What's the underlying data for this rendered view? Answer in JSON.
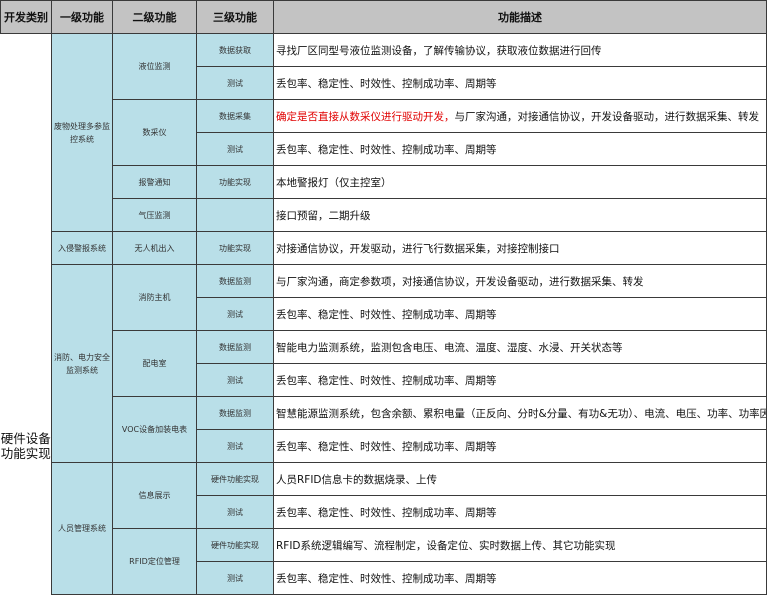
{
  "headers": [
    "开发类别",
    "一级功能",
    "二级功能",
    "三级功能",
    "功能描述"
  ],
  "category": "硬件设备功能实现",
  "level1": [
    "废物处理多参监控系统",
    "入侵警报系统",
    "消防、电力安全监测系统",
    "人员管理系统"
  ],
  "level2": [
    "液位监测",
    "数采仪",
    "报警通知",
    "气压监测",
    "无人机出入",
    "消防主机",
    "配电室",
    "VOC设备加装电表",
    "信息展示",
    "RFID定位管理"
  ],
  "rows": [
    {
      "l3": "数据获取",
      "desc": "寻找厂区同型号液位监测设备，了解传输协议，获取液位数据进行回传"
    },
    {
      "l3": "测试",
      "desc": "丢包率、稳定性、时效性、控制成功率、周期等"
    },
    {
      "l3": "数据采集",
      "desc_red": "确定是否直接从数采仪进行驱动开发，",
      "desc": "与厂家沟通，对接通信协议，开发设备驱动，进行数据采集、转发"
    },
    {
      "l3": "测试",
      "desc": "丢包率、稳定性、时效性、控制成功率、周期等"
    },
    {
      "l3": "功能实现",
      "desc": "本地警报灯（仅主控室）"
    },
    {
      "l3": "",
      "desc": "接口预留，二期升级"
    },
    {
      "l3": "功能实现",
      "desc": "对接通信协议，开发驱动，进行飞行数据采集，对接控制接口"
    },
    {
      "l3": "数据监测",
      "desc": "与厂家沟通，商定参数项，对接通信协议，开发设备驱动，进行数据采集、转发"
    },
    {
      "l3": "测试",
      "desc": "丢包率、稳定性、时效性、控制成功率、周期等"
    },
    {
      "l3": "数据监测",
      "desc": "智能电力监测系统，监测包含电压、电流、温度、湿度、水浸、开关状态等"
    },
    {
      "l3": "测试",
      "desc": "丢包率、稳定性、时效性、控制成功率、周期等"
    },
    {
      "l3": "数据监测",
      "desc": "智慧能源监测系统，包含余额、累积电量（正反向、分时&分量、有功&无功）、电流、电压、功率、功率因数等"
    },
    {
      "l3": "测试",
      "desc": "丢包率、稳定性、时效性、控制成功率、周期等"
    },
    {
      "l3": "硬件功能实现",
      "desc": "人员RFID信息卡的数据烧录、上传"
    },
    {
      "l3": "测试",
      "desc": "丢包率、稳定性、时效性、控制成功率、周期等"
    },
    {
      "l3": "硬件功能实现",
      "desc": "RFID系统逻辑编写、流程制定，设备定位、实时数据上传、其它功能实现"
    },
    {
      "l3": "测试",
      "desc": "丢包率、稳定性、时效性、控制成功率、周期等"
    }
  ],
  "colors": {
    "header_bg": "#c3c3c3",
    "cell_bg": "#b9dfe8",
    "highlight": "#e00000"
  }
}
